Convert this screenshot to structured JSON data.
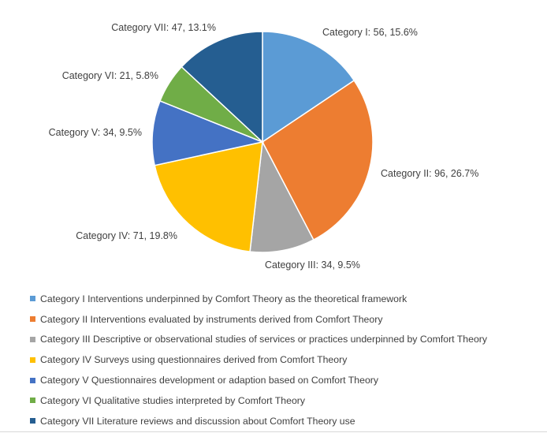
{
  "chart_data": {
    "type": "pie",
    "start_angle_deg": 0,
    "direction": "clockwise",
    "slices": [
      {
        "category": "Category I",
        "value": 56,
        "percent": "15.6%",
        "label": "Category I: 56, 15.6%",
        "legend": "Category I Interventions underpinned by Comfort Theory as the theoretical framework",
        "color": "#5b9bd5"
      },
      {
        "category": "Category II",
        "value": 96,
        "percent": "26.7%",
        "label": "Category II: 96, 26.7%",
        "legend": "Category II Interventions evaluated by instruments derived from Comfort Theory",
        "color": "#ed7d31"
      },
      {
        "category": "Category III",
        "value": 34,
        "percent": "9.5%",
        "label": "Category III: 34, 9.5%",
        "legend": "Category III Descriptive or observational studies of services or practices underpinned by Comfort Theory",
        "color": "#a5a5a5"
      },
      {
        "category": "Category IV",
        "value": 71,
        "percent": "19.8%",
        "label": "Category IV: 71, 19.8%",
        "legend": "Category IV Surveys using questionnaires derived from Comfort Theory",
        "color": "#ffc000"
      },
      {
        "category": "Category V",
        "value": 34,
        "percent": "9.5%",
        "label": "Category V: 34, 9.5%",
        "legend": "Category V Questionnaires development or adaption based on Comfort Theory",
        "color": "#4472c4"
      },
      {
        "category": "Category VI",
        "value": 21,
        "percent": "5.8%",
        "label": "Category VI: 21, 5.8%",
        "legend": "Category VI Qualitative studies interpreted by Comfort Theory",
        "color": "#70ad47"
      },
      {
        "category": "Category VII",
        "value": 47,
        "percent": "13.1%",
        "label": "Category VII: 47, 13.1%",
        "legend": "Category VII Literature reviews and discussion about Comfort Theory use",
        "color": "#255e91"
      }
    ],
    "legend_position": "bottom"
  }
}
